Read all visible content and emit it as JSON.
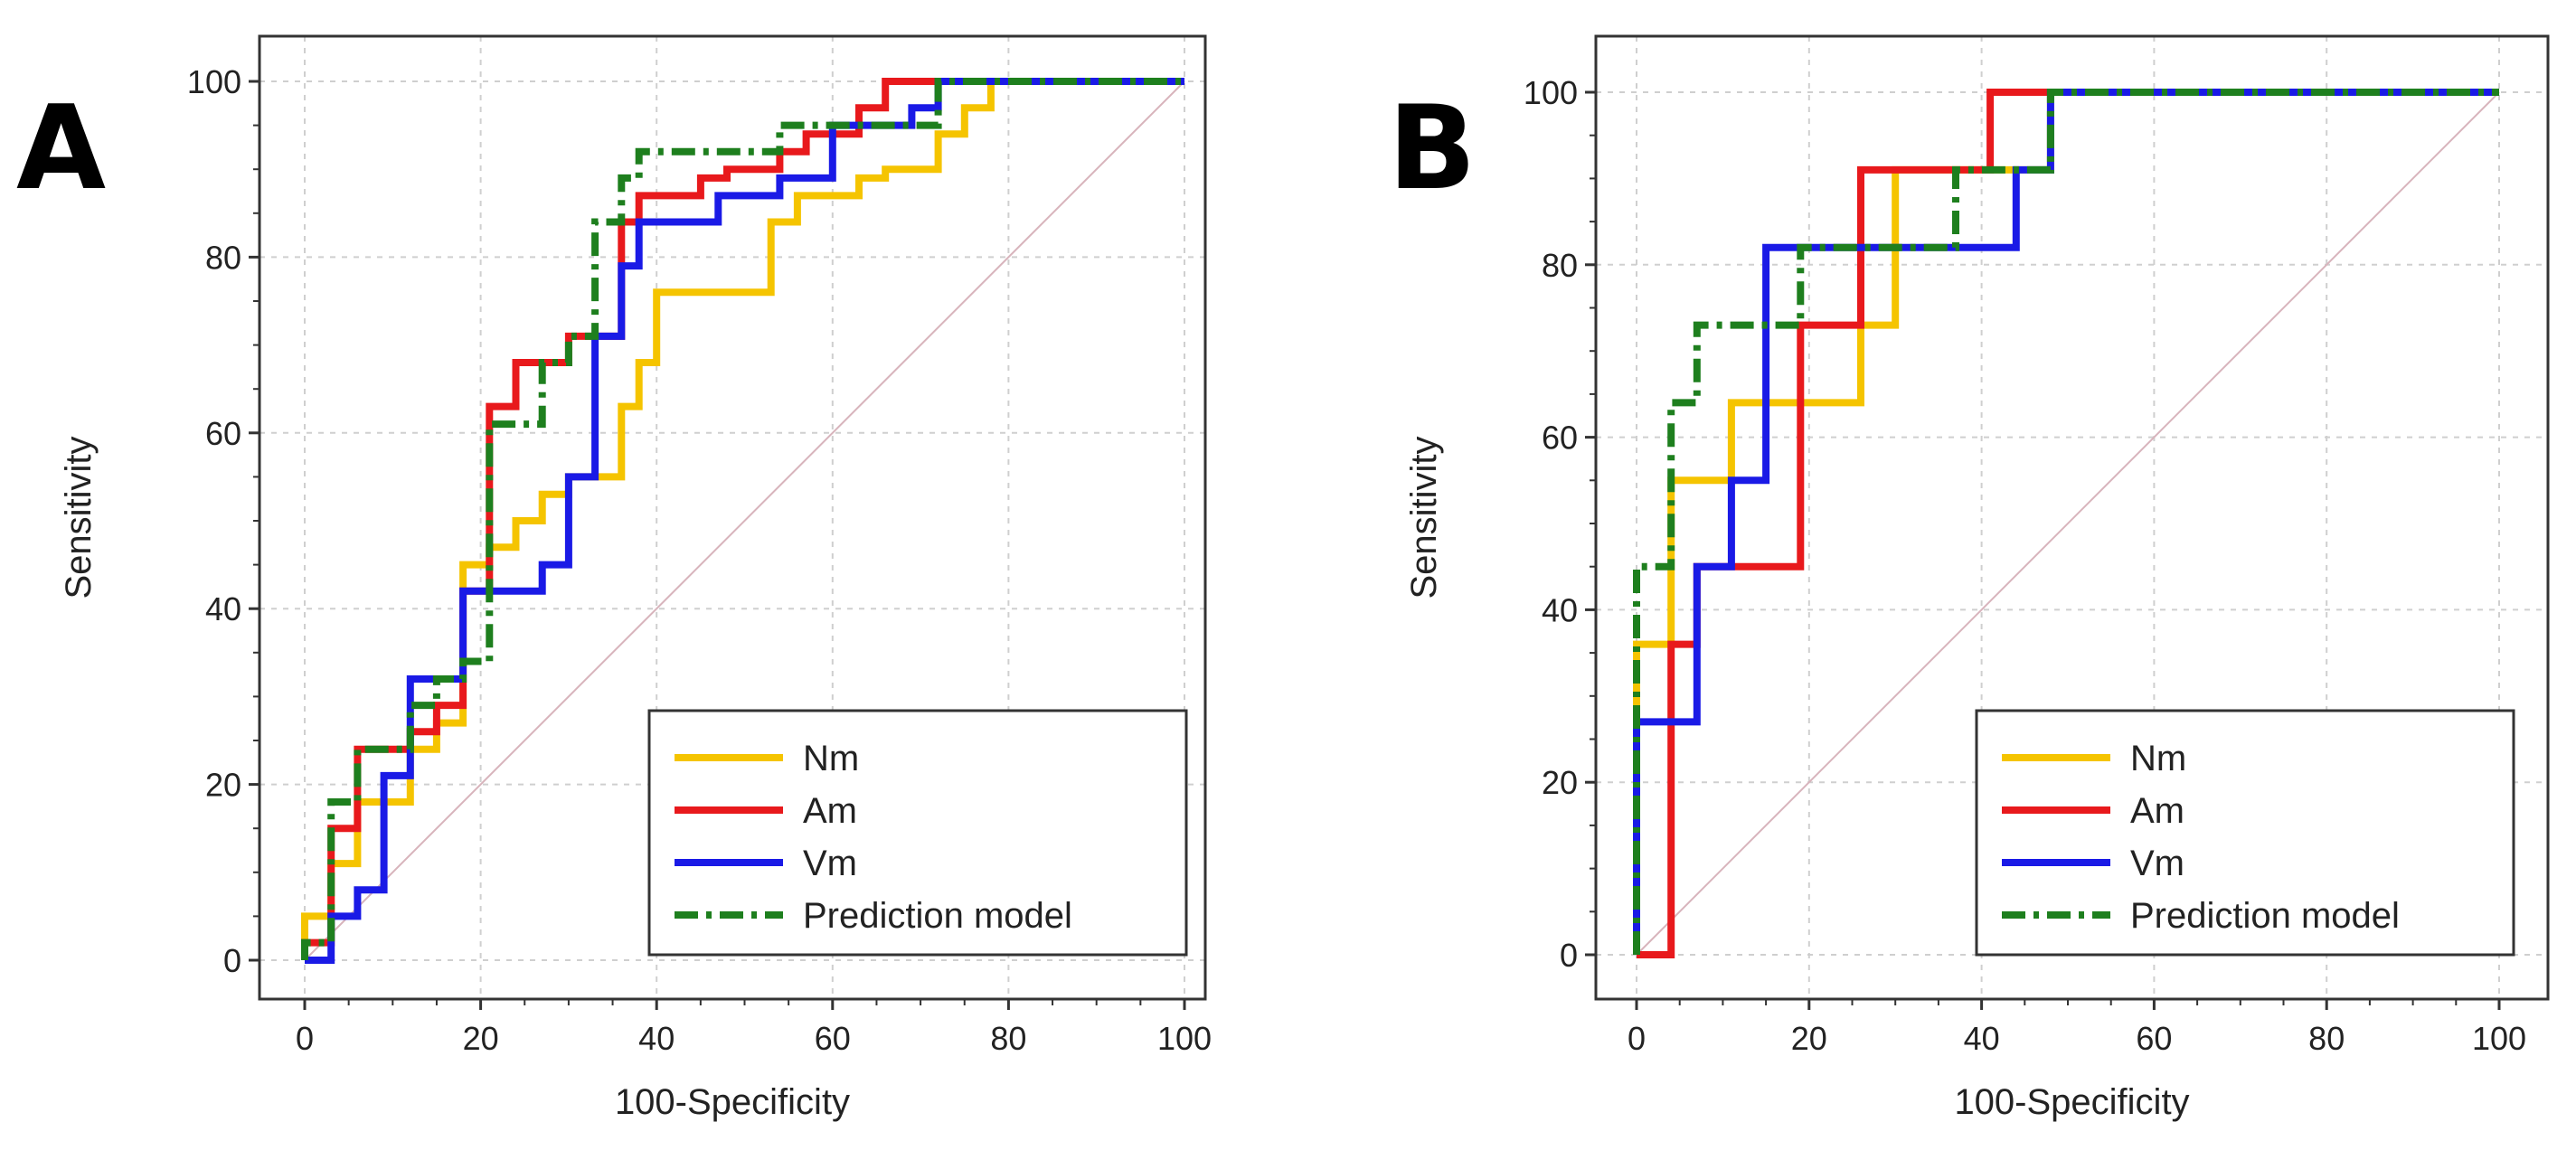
{
  "chart_data": [
    {
      "type": "line",
      "panel": "A",
      "xlabel": "100-Specificity",
      "ylabel": "Sensitivity",
      "xlim": [
        0,
        100
      ],
      "ylim": [
        0,
        100
      ],
      "xticks": [
        "0",
        "20",
        "40",
        "60",
        "80",
        "100"
      ],
      "yticks": [
        "0",
        "20",
        "40",
        "60",
        "80",
        "100"
      ],
      "grid": true,
      "legend_position": "bottom-right",
      "reference_line": "diagonal",
      "series": [
        {
          "name": "Nm",
          "color": "#F5C400",
          "style": "solid",
          "x": [
            0,
            0,
            3,
            3,
            6,
            6,
            12,
            12,
            15,
            15,
            18,
            18,
            21,
            21,
            24,
            24,
            27,
            27,
            30,
            30,
            36,
            36,
            38,
            38,
            40,
            40,
            53,
            53,
            56,
            56,
            63,
            63,
            66,
            66,
            72,
            72,
            75,
            75,
            78,
            78,
            100
          ],
          "y": [
            0,
            5,
            5,
            11,
            11,
            18,
            18,
            24,
            24,
            27,
            27,
            45,
            45,
            47,
            47,
            50,
            50,
            53,
            53,
            55,
            55,
            63,
            63,
            68,
            68,
            76,
            76,
            84,
            84,
            87,
            87,
            89,
            89,
            90,
            90,
            94,
            94,
            97,
            97,
            100,
            100
          ]
        },
        {
          "name": "Am",
          "color": "#E8191C",
          "style": "solid",
          "x": [
            0,
            0,
            3,
            3,
            6,
            6,
            12,
            12,
            15,
            15,
            18,
            18,
            21,
            21,
            24,
            24,
            27,
            27,
            30,
            30,
            36,
            36,
            38,
            38,
            41,
            41,
            45,
            45,
            48,
            48,
            54,
            54,
            57,
            57,
            63,
            63,
            66,
            66,
            69,
            69,
            100
          ],
          "y": [
            0,
            2,
            2,
            15,
            15,
            24,
            24,
            26,
            26,
            29,
            29,
            42,
            42,
            63,
            63,
            68,
            68,
            68,
            68,
            71,
            71,
            84,
            84,
            87,
            87,
            87,
            87,
            89,
            89,
            90,
            90,
            92,
            92,
            94,
            94,
            97,
            97,
            100,
            100,
            100,
            100
          ]
        },
        {
          "name": "Vm",
          "color": "#1A1AE6",
          "style": "solid",
          "x": [
            0,
            0,
            3,
            3,
            6,
            6,
            9,
            9,
            12,
            12,
            15,
            15,
            18,
            18,
            22,
            22,
            27,
            27,
            30,
            30,
            33,
            33,
            36,
            36,
            38,
            38,
            40,
            40,
            47,
            47,
            50,
            50,
            54,
            54,
            60,
            60,
            66,
            66,
            69,
            69,
            72,
            72,
            100
          ],
          "y": [
            0,
            0,
            0,
            5,
            5,
            8,
            8,
            21,
            21,
            32,
            32,
            32,
            32,
            42,
            42,
            42,
            42,
            45,
            45,
            55,
            55,
            71,
            71,
            79,
            79,
            84,
            84,
            84,
            84,
            87,
            87,
            87,
            87,
            89,
            89,
            95,
            95,
            95,
            95,
            97,
            97,
            100,
            100
          ]
        },
        {
          "name": "Prediction model",
          "color": "#1E7F1E",
          "style": "dashdot",
          "x": [
            0,
            0,
            3,
            3,
            6,
            6,
            12,
            12,
            15,
            15,
            18,
            18,
            21,
            21,
            24,
            24,
            27,
            27,
            30,
            30,
            33,
            33,
            36,
            36,
            38,
            38,
            41,
            41,
            54,
            54,
            57,
            57,
            72,
            72,
            100
          ],
          "y": [
            0,
            2,
            2,
            18,
            18,
            24,
            24,
            29,
            29,
            32,
            32,
            34,
            34,
            61,
            61,
            61,
            61,
            68,
            68,
            71,
            71,
            84,
            84,
            89,
            89,
            92,
            92,
            92,
            92,
            95,
            95,
            95,
            95,
            100,
            100
          ]
        }
      ]
    },
    {
      "type": "line",
      "panel": "B",
      "xlabel": "100-Specificity",
      "ylabel": "Sensitivity",
      "xlim": [
        0,
        100
      ],
      "ylim": [
        0,
        100
      ],
      "xticks": [
        "0",
        "20",
        "40",
        "60",
        "80",
        "100"
      ],
      "yticks": [
        "0",
        "20",
        "40",
        "60",
        "80",
        "100"
      ],
      "grid": true,
      "legend_position": "bottom-right",
      "reference_line": "diagonal",
      "series": [
        {
          "name": "Nm",
          "color": "#F5C400",
          "style": "solid",
          "x": [
            0,
            0,
            4,
            4,
            11,
            11,
            26,
            26,
            30,
            30,
            41,
            41,
            48,
            48,
            100
          ],
          "y": [
            0,
            36,
            36,
            55,
            55,
            64,
            64,
            73,
            73,
            91,
            91,
            91,
            91,
            100,
            100
          ]
        },
        {
          "name": "Am",
          "color": "#E8191C",
          "style": "solid",
          "x": [
            0,
            0,
            4,
            4,
            7,
            7,
            19,
            19,
            26,
            26,
            41,
            41,
            100
          ],
          "y": [
            0,
            0,
            0,
            36,
            36,
            45,
            45,
            73,
            73,
            91,
            91,
            100,
            100
          ]
        },
        {
          "name": "Vm",
          "color": "#1A1AE6",
          "style": "solid",
          "x": [
            0,
            0,
            4,
            4,
            7,
            7,
            11,
            11,
            15,
            15,
            37,
            37,
            44,
            44,
            48,
            48,
            100
          ],
          "y": [
            0,
            27,
            27,
            27,
            27,
            45,
            45,
            55,
            55,
            82,
            82,
            82,
            82,
            91,
            91,
            100,
            100
          ]
        },
        {
          "name": "Prediction model",
          "color": "#1E7F1E",
          "style": "dashdot",
          "x": [
            0,
            0,
            4,
            4,
            7,
            7,
            19,
            19,
            37,
            37,
            48,
            48,
            100
          ],
          "y": [
            0,
            45,
            45,
            64,
            64,
            73,
            73,
            82,
            82,
            91,
            91,
            100,
            100
          ]
        }
      ]
    }
  ]
}
